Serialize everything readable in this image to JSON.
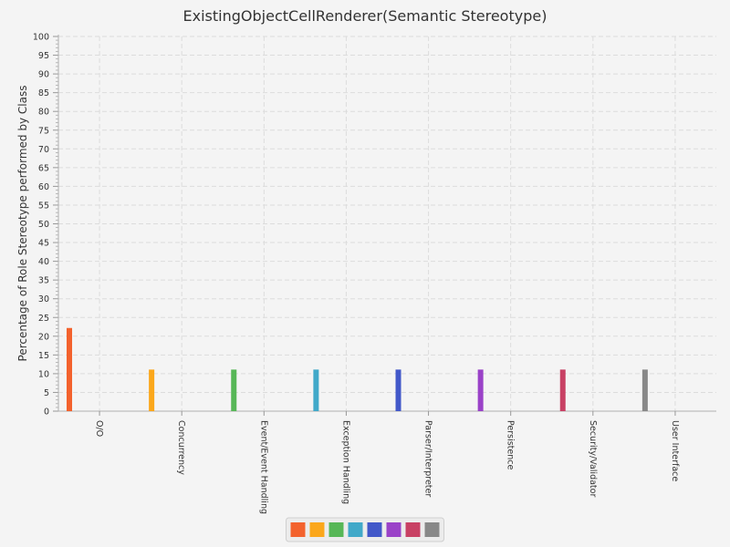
{
  "chart_data": {
    "type": "bar",
    "title": "ExistingObjectCellRenderer(Semantic Stereotype)",
    "xlabel": "",
    "ylabel": "Percentage of Role Stereotype performed by Class",
    "ylim": [
      0,
      100
    ],
    "ytick_step": 5,
    "grid": true,
    "legend_position": "bottom",
    "categories": [
      "O/O",
      "Concurrency",
      "Event/Event Handling",
      "Exception Handling",
      "Parser/Interpreter",
      "Persistence",
      "Security/Validator",
      "User Interface"
    ],
    "values": [
      22.2,
      11.1,
      11.1,
      11.1,
      11.1,
      11.1,
      11.1,
      11.1
    ],
    "colors": [
      "#f3622d",
      "#fba71b",
      "#57b757",
      "#41a9c9",
      "#4258c9",
      "#9a42c8",
      "#c84164",
      "#888888"
    ]
  }
}
